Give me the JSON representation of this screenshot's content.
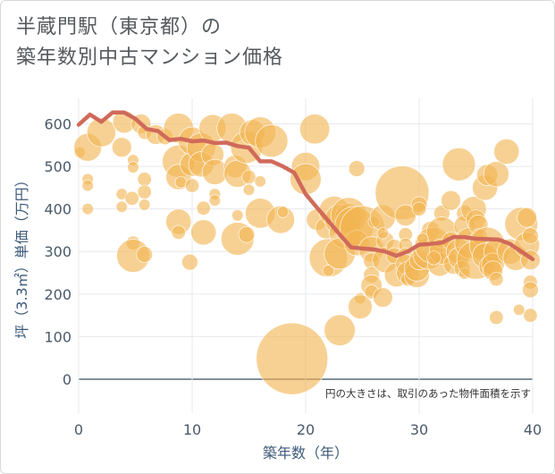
{
  "title_line1": "半蔵門駅（東京都）の",
  "title_line2": "築年数別中古マンション価格",
  "chart_data": {
    "type": "scatter",
    "xlabel": "築年数（年）",
    "ylabel": "坪（3.3㎡）単価（万円）",
    "note": "円の大きさは、取引のあった物件面積を示す",
    "xlim": [
      0,
      40
    ],
    "ylim": [
      -80,
      660
    ],
    "x_ticks": [
      "0",
      "10",
      "20",
      "30",
      "40"
    ],
    "y_ticks": [
      "0",
      "100",
      "200",
      "300",
      "400",
      "500",
      "600"
    ],
    "grid": true,
    "colors": {
      "bubble": "#f2b552",
      "line": "#d06a5a",
      "zero_line": "#5a6a7a"
    },
    "line_series": {
      "x": [
        0,
        1,
        2,
        3,
        4,
        5,
        6,
        7,
        8,
        9,
        10,
        11,
        12,
        13,
        14,
        15,
        16,
        17,
        18,
        19,
        20,
        21,
        22,
        23,
        24,
        25,
        26,
        27,
        28,
        29,
        30,
        31,
        32,
        33,
        34,
        35,
        36,
        37,
        38,
        39,
        40
      ],
      "y": [
        598,
        622,
        605,
        627,
        627,
        612,
        588,
        583,
        562,
        565,
        559,
        561,
        555,
        556,
        548,
        544,
        512,
        512,
        500,
        485,
        435,
        403,
        372,
        340,
        310,
        307,
        305,
        300,
        290,
        300,
        316,
        318,
        321,
        334,
        334,
        330,
        329,
        328,
        318,
        300,
        282
      ]
    },
    "bubbles": [
      {
        "x": 0.1,
        "y": 533,
        "s": 40
      },
      {
        "x": 0.8,
        "y": 545,
        "s": 240
      },
      {
        "x": 0.8,
        "y": 470,
        "s": 40
      },
      {
        "x": 0.8,
        "y": 455,
        "s": 40
      },
      {
        "x": 0.8,
        "y": 400,
        "s": 40
      },
      {
        "x": 2,
        "y": 580,
        "s": 260
      },
      {
        "x": 3.8,
        "y": 545,
        "s": 120
      },
      {
        "x": 4,
        "y": 605,
        "s": 160
      },
      {
        "x": 3.8,
        "y": 435,
        "s": 40
      },
      {
        "x": 3.8,
        "y": 405,
        "s": 40
      },
      {
        "x": 4.8,
        "y": 515,
        "s": 40
      },
      {
        "x": 4.8,
        "y": 498,
        "s": 40
      },
      {
        "x": 4.7,
        "y": 425,
        "s": 60
      },
      {
        "x": 4.8,
        "y": 320,
        "s": 60
      },
      {
        "x": 4.8,
        "y": 290,
        "s": 340
      },
      {
        "x": 5.5,
        "y": 600,
        "s": 120
      },
      {
        "x": 5.8,
        "y": 580,
        "s": 60
      },
      {
        "x": 5.8,
        "y": 470,
        "s": 60
      },
      {
        "x": 5.8,
        "y": 440,
        "s": 60
      },
      {
        "x": 5.8,
        "y": 410,
        "s": 40
      },
      {
        "x": 5.8,
        "y": 293,
        "s": 80
      },
      {
        "x": 6.8,
        "y": 575,
        "s": 120
      },
      {
        "x": 7.6,
        "y": 570,
        "s": 80
      },
      {
        "x": 8.8,
        "y": 590,
        "s": 280
      },
      {
        "x": 8.8,
        "y": 512,
        "s": 330
      },
      {
        "x": 8.8,
        "y": 475,
        "s": 200
      },
      {
        "x": 8.8,
        "y": 370,
        "s": 200
      },
      {
        "x": 8.8,
        "y": 345,
        "s": 60
      },
      {
        "x": 9,
        "y": 463,
        "s": 40
      },
      {
        "x": 9.8,
        "y": 275,
        "s": 80
      },
      {
        "x": 10,
        "y": 505,
        "s": 180
      },
      {
        "x": 10,
        "y": 560,
        "s": 240
      },
      {
        "x": 10,
        "y": 455,
        "s": 60
      },
      {
        "x": 10.8,
        "y": 545,
        "s": 260
      },
      {
        "x": 10.8,
        "y": 505,
        "s": 200
      },
      {
        "x": 11,
        "y": 402,
        "s": 60
      },
      {
        "x": 11,
        "y": 345,
        "s": 200
      },
      {
        "x": 11.8,
        "y": 590,
        "s": 230
      },
      {
        "x": 11.8,
        "y": 528,
        "s": 160
      },
      {
        "x": 12,
        "y": 487,
        "s": 200
      },
      {
        "x": 12,
        "y": 435,
        "s": 40
      },
      {
        "x": 12,
        "y": 420,
        "s": 40
      },
      {
        "x": 13.5,
        "y": 590,
        "s": 280
      },
      {
        "x": 13.8,
        "y": 500,
        "s": 160
      },
      {
        "x": 14,
        "y": 483,
        "s": 230
      },
      {
        "x": 14,
        "y": 385,
        "s": 40
      },
      {
        "x": 14,
        "y": 330,
        "s": 340
      },
      {
        "x": 14.8,
        "y": 545,
        "s": 320
      },
      {
        "x": 15,
        "y": 475,
        "s": 60
      },
      {
        "x": 15,
        "y": 445,
        "s": 40
      },
      {
        "x": 14.8,
        "y": 340,
        "s": 80
      },
      {
        "x": 15.3,
        "y": 580,
        "s": 200
      },
      {
        "x": 16,
        "y": 580,
        "s": 300
      },
      {
        "x": 16,
        "y": 465,
        "s": 40
      },
      {
        "x": 16,
        "y": 390,
        "s": 280
      },
      {
        "x": 17,
        "y": 560,
        "s": 330
      },
      {
        "x": 17.8,
        "y": 375,
        "s": 240
      },
      {
        "x": 18,
        "y": 393,
        "s": 40
      },
      {
        "x": 18.8,
        "y": 48,
        "s": 1600
      },
      {
        "x": 20,
        "y": 500,
        "s": 250
      },
      {
        "x": 20,
        "y": 470,
        "s": 300
      },
      {
        "x": 20.8,
        "y": 588,
        "s": 280
      },
      {
        "x": 21,
        "y": 375,
        "s": 140
      },
      {
        "x": 21.8,
        "y": 355,
        "s": 140
      },
      {
        "x": 22,
        "y": 285,
        "s": 460
      },
      {
        "x": 22,
        "y": 255,
        "s": 40
      },
      {
        "x": 22.5,
        "y": 395,
        "s": 280
      },
      {
        "x": 23,
        "y": 375,
        "s": 280
      },
      {
        "x": 23.5,
        "y": 345,
        "s": 320
      },
      {
        "x": 23.8,
        "y": 380,
        "s": 240
      },
      {
        "x": 23,
        "y": 295,
        "s": 300
      },
      {
        "x": 23,
        "y": 115,
        "s": 300
      },
      {
        "x": 23.8,
        "y": 385,
        "s": 400
      },
      {
        "x": 24.3,
        "y": 360,
        "s": 480
      },
      {
        "x": 24.5,
        "y": 495,
        "s": 80
      },
      {
        "x": 24.5,
        "y": 320,
        "s": 200
      },
      {
        "x": 24.8,
        "y": 190,
        "s": 40
      },
      {
        "x": 25,
        "y": 355,
        "s": 620
      },
      {
        "x": 24.8,
        "y": 170,
        "s": 180
      },
      {
        "x": 25.8,
        "y": 305,
        "s": 200
      },
      {
        "x": 25.8,
        "y": 278,
        "s": 80
      },
      {
        "x": 25.8,
        "y": 245,
        "s": 80
      },
      {
        "x": 25.8,
        "y": 220,
        "s": 140
      },
      {
        "x": 25.8,
        "y": 205,
        "s": 60
      },
      {
        "x": 26,
        "y": 370,
        "s": 40
      },
      {
        "x": 26.8,
        "y": 380,
        "s": 200
      },
      {
        "x": 27,
        "y": 325,
        "s": 100
      },
      {
        "x": 27,
        "y": 280,
        "s": 200
      },
      {
        "x": 26.8,
        "y": 192,
        "s": 120
      },
      {
        "x": 27.8,
        "y": 310,
        "s": 80
      },
      {
        "x": 27.8,
        "y": 290,
        "s": 80
      },
      {
        "x": 28,
        "y": 245,
        "s": 180
      },
      {
        "x": 28.5,
        "y": 438,
        "s": 900
      },
      {
        "x": 28.8,
        "y": 385,
        "s": 140
      },
      {
        "x": 28.8,
        "y": 340,
        "s": 60
      },
      {
        "x": 28.8,
        "y": 315,
        "s": 60
      },
      {
        "x": 28.8,
        "y": 290,
        "s": 80
      },
      {
        "x": 28.8,
        "y": 270,
        "s": 120
      },
      {
        "x": 29,
        "y": 250,
        "s": 160
      },
      {
        "x": 29,
        "y": 235,
        "s": 60
      },
      {
        "x": 29.8,
        "y": 245,
        "s": 200
      },
      {
        "x": 29.8,
        "y": 260,
        "s": 200
      },
      {
        "x": 30,
        "y": 280,
        "s": 120
      },
      {
        "x": 30,
        "y": 410,
        "s": 80
      },
      {
        "x": 30,
        "y": 400,
        "s": 60
      },
      {
        "x": 30.8,
        "y": 295,
        "s": 300
      },
      {
        "x": 31,
        "y": 350,
        "s": 100
      },
      {
        "x": 31.2,
        "y": 315,
        "s": 400
      },
      {
        "x": 31.8,
        "y": 270,
        "s": 180
      },
      {
        "x": 32,
        "y": 390,
        "s": 80
      },
      {
        "x": 32,
        "y": 345,
        "s": 300
      },
      {
        "x": 32,
        "y": 300,
        "s": 200
      },
      {
        "x": 32.8,
        "y": 420,
        "s": 120
      },
      {
        "x": 32.8,
        "y": 325,
        "s": 100
      },
      {
        "x": 33,
        "y": 270,
        "s": 120
      },
      {
        "x": 33.5,
        "y": 505,
        "s": 340
      },
      {
        "x": 33.5,
        "y": 300,
        "s": 200
      },
      {
        "x": 33.5,
        "y": 285,
        "s": 140
      },
      {
        "x": 33.8,
        "y": 260,
        "s": 80
      },
      {
        "x": 34,
        "y": 390,
        "s": 80
      },
      {
        "x": 34,
        "y": 360,
        "s": 140
      },
      {
        "x": 34,
        "y": 248,
        "s": 40
      },
      {
        "x": 34.5,
        "y": 320,
        "s": 300
      },
      {
        "x": 34.8,
        "y": 400,
        "s": 200
      },
      {
        "x": 35,
        "y": 375,
        "s": 120
      },
      {
        "x": 35,
        "y": 280,
        "s": 460
      },
      {
        "x": 35.2,
        "y": 363,
        "s": 120
      },
      {
        "x": 35.3,
        "y": 335,
        "s": 80
      },
      {
        "x": 35.8,
        "y": 450,
        "s": 200
      },
      {
        "x": 36,
        "y": 315,
        "s": 400
      },
      {
        "x": 35.8,
        "y": 290,
        "s": 200
      },
      {
        "x": 36,
        "y": 480,
        "s": 140
      },
      {
        "x": 36.2,
        "y": 265,
        "s": 140
      },
      {
        "x": 36.8,
        "y": 482,
        "s": 200
      },
      {
        "x": 36.8,
        "y": 300,
        "s": 200
      },
      {
        "x": 36.5,
        "y": 270,
        "s": 160
      },
      {
        "x": 36.5,
        "y": 255,
        "s": 120
      },
      {
        "x": 36.8,
        "y": 235,
        "s": 60
      },
      {
        "x": 36.8,
        "y": 145,
        "s": 60
      },
      {
        "x": 37.7,
        "y": 535,
        "s": 200
      },
      {
        "x": 38,
        "y": 300,
        "s": 200
      },
      {
        "x": 38.5,
        "y": 285,
        "s": 200
      },
      {
        "x": 38.8,
        "y": 163,
        "s": 40
      },
      {
        "x": 39,
        "y": 365,
        "s": 340
      },
      {
        "x": 39.5,
        "y": 380,
        "s": 120
      },
      {
        "x": 39.5,
        "y": 315,
        "s": 200
      },
      {
        "x": 39.8,
        "y": 337,
        "s": 80
      },
      {
        "x": 39.8,
        "y": 280,
        "s": 120
      },
      {
        "x": 39.8,
        "y": 228,
        "s": 60
      },
      {
        "x": 39.8,
        "y": 210,
        "s": 80
      },
      {
        "x": 39.8,
        "y": 150,
        "s": 60
      },
      {
        "x": 26.8,
        "y": 343,
        "s": 40
      },
      {
        "x": 30.3,
        "y": 330,
        "s": 40
      },
      {
        "x": 31.3,
        "y": 285,
        "s": 60
      }
    ]
  }
}
